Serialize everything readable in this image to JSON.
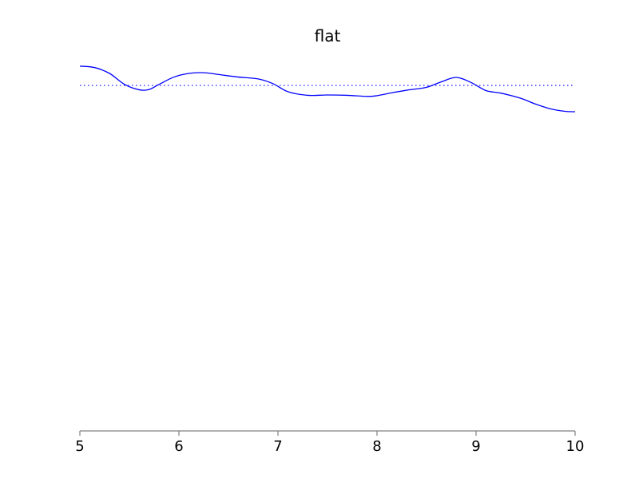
{
  "chart_data": {
    "type": "line",
    "title": "flat",
    "xlabel": "",
    "ylabel": "",
    "xlim": [
      5,
      10
    ],
    "ylim": [
      0,
      1.05
    ],
    "x_ticks": [
      "5",
      "6",
      "7",
      "8",
      "9",
      "10"
    ],
    "y_axis_visible": false,
    "grid": false,
    "legend": "none",
    "series": [
      {
        "style": "solid",
        "color": "#0000ff",
        "x": [
          5.0,
          5.15,
          5.3,
          5.45,
          5.6,
          5.7,
          5.8,
          5.95,
          6.1,
          6.25,
          6.4,
          6.6,
          6.8,
          6.95,
          7.1,
          7.3,
          7.5,
          7.7,
          7.9,
          8.0,
          8.15,
          8.3,
          8.5,
          8.65,
          8.8,
          8.95,
          9.1,
          9.25,
          9.45,
          9.6,
          9.75,
          9.9,
          10.0
        ],
        "y": [
          1.0,
          0.996,
          0.98,
          0.95,
          0.935,
          0.936,
          0.95,
          0.97,
          0.98,
          0.982,
          0.977,
          0.97,
          0.965,
          0.952,
          0.93,
          0.92,
          0.921,
          0.92,
          0.917,
          0.919,
          0.927,
          0.934,
          0.942,
          0.957,
          0.969,
          0.955,
          0.933,
          0.926,
          0.912,
          0.896,
          0.883,
          0.876,
          0.875
        ]
      },
      {
        "style": "dotted",
        "color": "#0000ff",
        "x": [
          5,
          10
        ],
        "y": [
          0.947,
          0.947
        ]
      }
    ]
  }
}
